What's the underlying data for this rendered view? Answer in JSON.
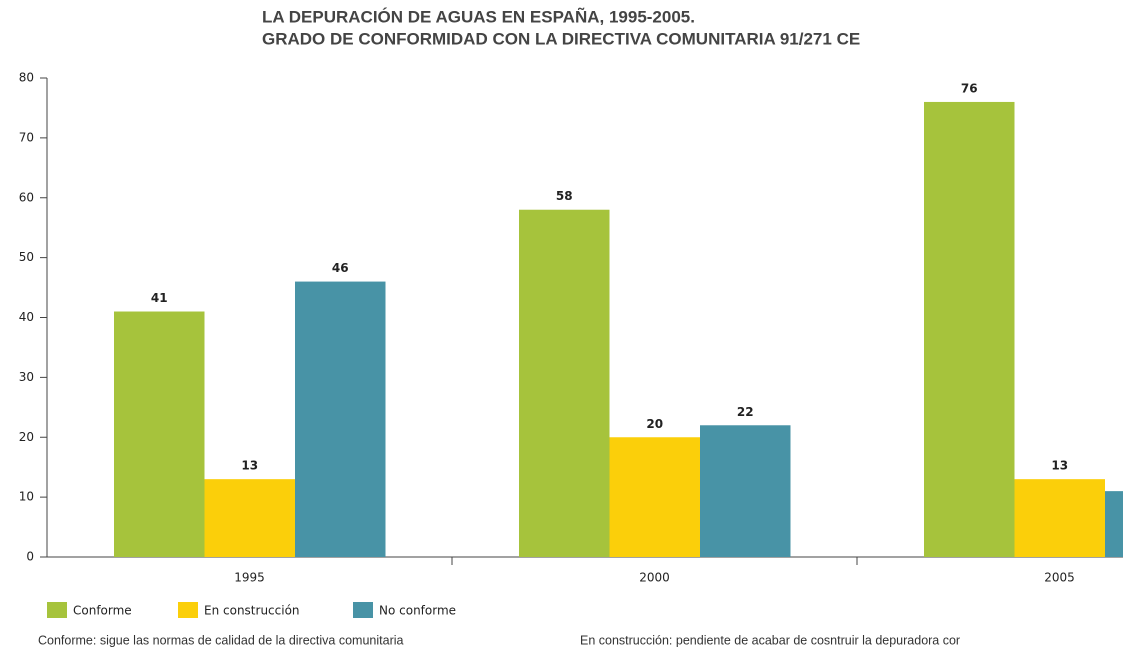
{
  "chart_data": {
    "type": "bar",
    "title": [
      "LA DEPURACIÓN DE AGUAS EN ESPAÑA, 1995-2005.",
      "GRADO DE CONFORMIDAD CON LA DIRECTIVA COMUNITARIA 91/271 CE"
    ],
    "categories": [
      "1995",
      "2000",
      "2005"
    ],
    "series": [
      {
        "name": "Conforme",
        "color": "#a6c33c",
        "values": [
          41,
          58,
          76
        ]
      },
      {
        "name": "En construcción",
        "color": "#fbcf0a",
        "values": [
          13,
          20,
          13
        ]
      },
      {
        "name": "No conforme",
        "color": "#4893a6",
        "values": [
          46,
          22,
          11
        ]
      }
    ],
    "ylim": [
      0,
      80
    ],
    "yticks": [
      0,
      10,
      20,
      30,
      40,
      50,
      60,
      70,
      80
    ],
    "grid": false,
    "notes": [
      "Conforme: sigue las normas de calidad de la directiva comunitaria",
      "En construcción: pendiente de acabar de cosntruir la depuradora cor"
    ]
  }
}
